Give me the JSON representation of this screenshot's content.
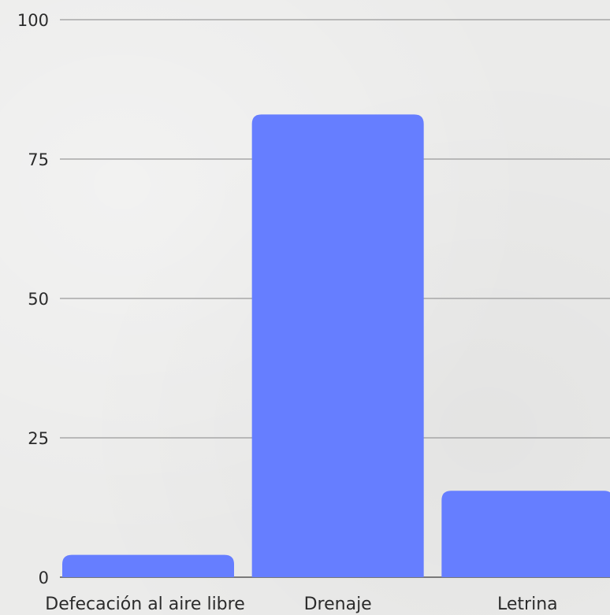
{
  "chart_data": {
    "type": "bar",
    "title": "",
    "xlabel": "",
    "ylabel": "",
    "categories": [
      "Defecación al aire libre",
      "Drenaje",
      "Letrina"
    ],
    "values": [
      4,
      83,
      15.5
    ],
    "ylim": [
      0,
      100
    ],
    "yticks": [
      "0",
      "25",
      "50",
      "75",
      "100"
    ],
    "grid": true,
    "bar_color": "#667eff"
  }
}
